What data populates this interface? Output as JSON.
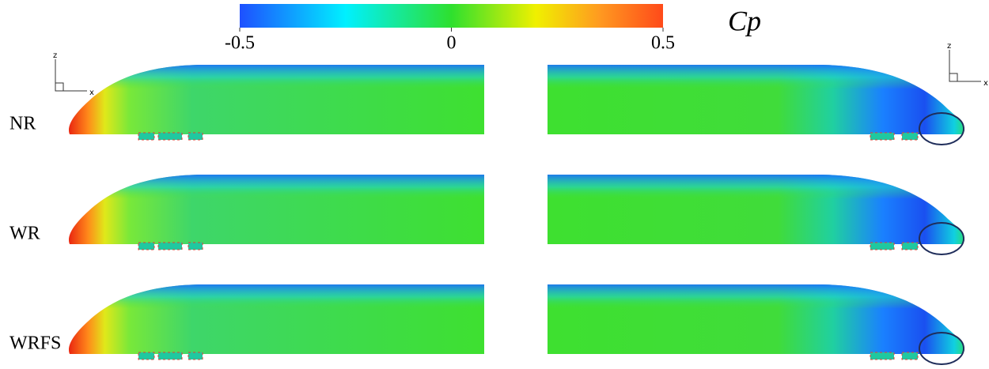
{
  "colorbar": {
    "title": "Cp",
    "range": [
      -0.5,
      0.5
    ],
    "ticks": [
      -0.5,
      0,
      0.5
    ]
  },
  "rows": [
    {
      "label": "NR"
    },
    {
      "label": "WR"
    },
    {
      "label": "WRFS"
    }
  ],
  "triads": [
    {
      "z": "z",
      "x": "x"
    },
    {
      "z": "z",
      "x": "x"
    }
  ]
}
